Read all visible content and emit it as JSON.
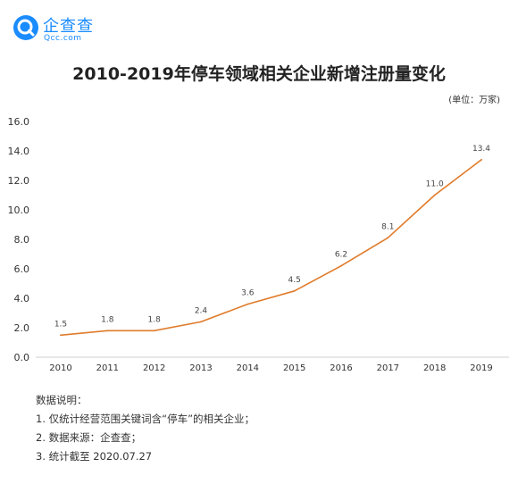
{
  "brand": {
    "name": "企查查",
    "domain": "Qcc.com",
    "accent_color": "#1a8cff",
    "icon": "qcc-logo-icon"
  },
  "chart_data": {
    "type": "line",
    "title": "2010-2019年停车领域相关企业新增注册量变化",
    "unit_label": "(单位：万家)",
    "categories": [
      "2010",
      "2011",
      "2012",
      "2013",
      "2014",
      "2015",
      "2016",
      "2017",
      "2018",
      "2019"
    ],
    "series": [
      {
        "values": [
          1.5,
          1.8,
          1.8,
          2.4,
          3.6,
          4.5,
          6.2,
          8.1,
          11.0,
          13.4
        ],
        "labels": [
          "1.5",
          "1.8",
          "1.8",
          "2.4",
          "3.6",
          "4.5",
          "6.2",
          "8.1",
          "11.0",
          "13.4"
        ],
        "color": "#e07b2a"
      }
    ],
    "ylim": [
      0,
      16
    ],
    "yticks": [
      "0.0",
      "2.0",
      "4.0",
      "6.0",
      "8.0",
      "10.0",
      "12.0",
      "14.0",
      "16.0"
    ],
    "grid": false,
    "legend": "none"
  },
  "notes": {
    "heading": "数据说明：",
    "items": [
      "1. 仅统计经营范围关键词含“停车”的相关企业；",
      "2. 数据来源：企查查；",
      "3. 统计截至 2020.07.27"
    ]
  }
}
